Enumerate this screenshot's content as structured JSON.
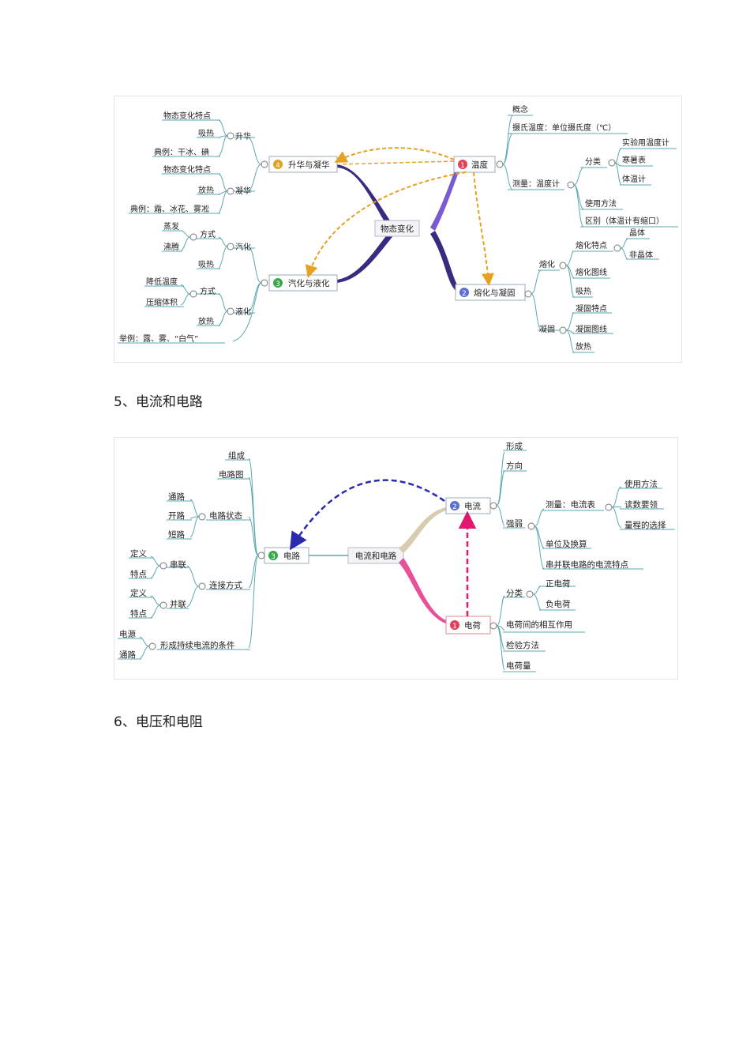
{
  "headings": {
    "h5": "5、电流和电路",
    "h6": "6、电压和电阻"
  },
  "map1": {
    "center": "物态变化",
    "b1": {
      "num": "1",
      "title": "温度",
      "c1": "概念",
      "c2": "摄氏温度：单位摄氏度（℃）",
      "c3": "测量：温度计",
      "c3a": "分类",
      "c3a1": "实验用温度计",
      "c3a2": "寒暑表",
      "c3a3": "体温计",
      "c3b": "使用方法",
      "c3c": "区别（体温计有缩口）"
    },
    "b2": {
      "num": "2",
      "title": "熔化与凝固",
      "m": "熔化",
      "m1": "熔化特点",
      "m1a": "晶体",
      "m1b": "非晶体",
      "m2": "熔化图线",
      "m3": "吸热",
      "s": "凝固",
      "s1": "凝固特点",
      "s2": "凝固图线",
      "s3": "放热"
    },
    "b3": {
      "num": "3",
      "title": "汽化与液化",
      "v": "汽化",
      "vw": "方式",
      "vw1": "蒸发",
      "vw2": "沸腾",
      "vh": "吸热",
      "l": "液化",
      "lw": "方式",
      "lw1": "降低温度",
      "lw2": "压缩体积",
      "lh": "放热",
      "le": "举例：露、雾、“白气”"
    },
    "b4": {
      "num": "4",
      "title": "升华与凝华",
      "sb": "升华",
      "sb1": "物态变化特点",
      "sb2": "吸热",
      "sb3": "典例：干冰、碘",
      "ds": "凝华",
      "ds1": "物态变化特点",
      "ds2": "放热",
      "ds3": "典例：霜、冰花、雾凇"
    }
  },
  "map2": {
    "center": "电流和电路",
    "b1": {
      "num": "1",
      "title": "电荷",
      "c1": "分类",
      "c1a": "正电荷",
      "c1b": "负电荷",
      "c2": "电荷间的相互作用",
      "c3": "检验方法",
      "c4": "电荷量"
    },
    "b2": {
      "num": "2",
      "title": "电流",
      "c1": "形成",
      "c2": "方向",
      "c3": "强弱",
      "c3a": "测量：电流表",
      "c3a1": "使用方法",
      "c3a2": "读数要领",
      "c3a3": "量程的选择",
      "c3b": "单位及换算",
      "c3c": "串并联电路的电流特点"
    },
    "b3": {
      "num": "3",
      "title": "电路",
      "c1": "组成",
      "c2": "电路图",
      "c3": "电路状态",
      "c3a": "通路",
      "c3b": "开路",
      "c3c": "短路",
      "c4": "连接方式",
      "c4a": "串联",
      "c4a1": "定义",
      "c4a2": "特点",
      "c4b": "并联",
      "c4b1": "定义",
      "c4b2": "特点",
      "c5": "形成持续电流的条件",
      "c5a": "电源",
      "c5b": "通路"
    }
  },
  "colors": {
    "b1": "#e0405a",
    "b2": "#5a6fd0",
    "b3": "#3aa84a",
    "b4": "#e0a020",
    "purple": "#3a2a80",
    "dash_orange": "#e8a020",
    "dash_blue": "#2a2ab0",
    "dash_pink": "#e01870",
    "teal": "#5aa8b0"
  }
}
